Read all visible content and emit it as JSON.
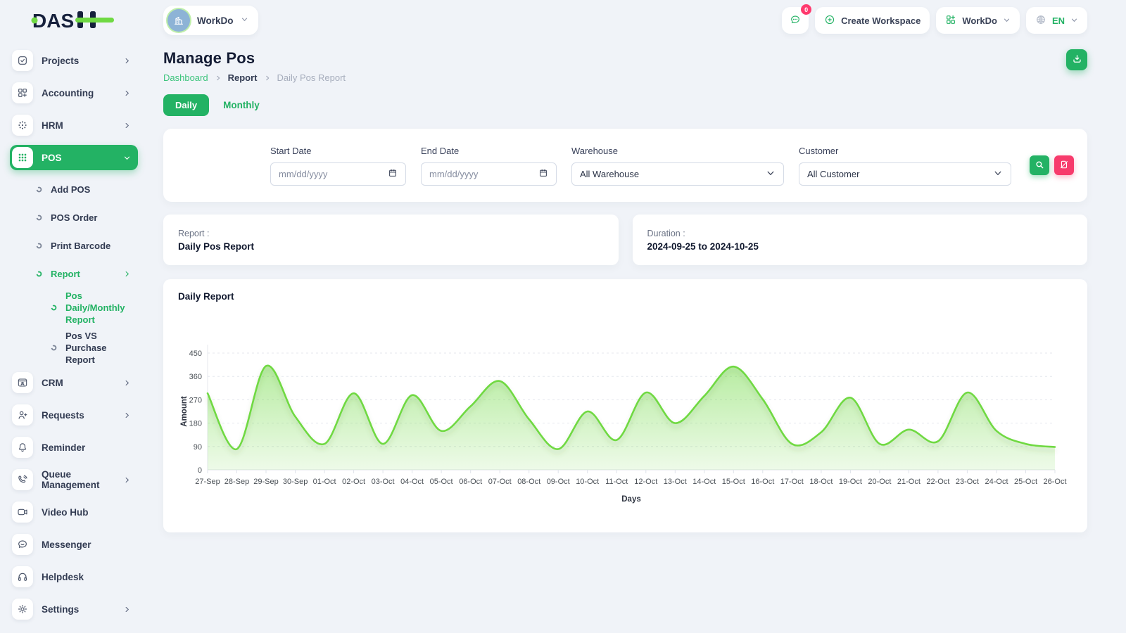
{
  "brand": {
    "logo_text": "DASH"
  },
  "topbar": {
    "workspace_name": "WorkDo",
    "messages_badge": "0",
    "create_workspace_label": "Create Workspace",
    "switcher_label": "WorkDo",
    "language": "EN"
  },
  "sidebar": {
    "items": [
      {
        "label": "Projects",
        "icon": "check-square",
        "chevron": "right",
        "level": 0
      },
      {
        "label": "Accounting",
        "icon": "grid-plus",
        "chevron": "right",
        "level": 0
      },
      {
        "label": "HRM",
        "icon": "target-dots",
        "chevron": "right",
        "level": 0
      },
      {
        "label": "POS",
        "icon": "dots-grid",
        "chevron": "down",
        "level": 0,
        "active": true
      },
      {
        "label": "Add POS",
        "icon": "donut",
        "level": 1
      },
      {
        "label": "POS Order",
        "icon": "donut",
        "level": 1
      },
      {
        "label": "Print Barcode",
        "icon": "donut",
        "level": 1
      },
      {
        "label": "Report",
        "icon": "donut",
        "level": 1,
        "chevron": "right",
        "green": true
      },
      {
        "label": "Pos Daily/Monthly Report",
        "icon": "donut",
        "level": 2,
        "green": true
      },
      {
        "label": "Pos VS Purchase Report",
        "icon": "donut",
        "level": 2
      },
      {
        "label": "CRM",
        "icon": "browser-user",
        "chevron": "right",
        "level": 0
      },
      {
        "label": "Requests",
        "icon": "user-plus",
        "chevron": "right",
        "level": 0
      },
      {
        "label": "Reminder",
        "icon": "bell",
        "level": 0
      },
      {
        "label": "Queue Management",
        "icon": "phone-wave",
        "chevron": "right",
        "level": 0
      },
      {
        "label": "Video Hub",
        "icon": "video",
        "level": 0
      },
      {
        "label": "Messenger",
        "icon": "chat",
        "level": 0
      },
      {
        "label": "Helpdesk",
        "icon": "headphones",
        "level": 0
      },
      {
        "label": "Settings",
        "icon": "gear",
        "chevron": "right",
        "level": 0
      }
    ]
  },
  "page": {
    "title": "Manage Pos",
    "breadcrumb": [
      "Dashboard",
      "Report",
      "Daily Pos Report"
    ]
  },
  "tabs": {
    "daily": "Daily",
    "monthly": "Monthly"
  },
  "filters": {
    "start_date": {
      "label": "Start Date",
      "placeholder": "mm/dd/yyyy"
    },
    "end_date": {
      "label": "End Date",
      "placeholder": "mm/dd/yyyy"
    },
    "warehouse": {
      "label": "Warehouse",
      "value": "All Warehouse"
    },
    "customer": {
      "label": "Customer",
      "value": "All Customer"
    }
  },
  "summary": {
    "report": {
      "label": "Report :",
      "value": "Daily Pos Report"
    },
    "duration": {
      "label": "Duration :",
      "value": "2024-09-25 to 2024-10-25"
    }
  },
  "chart_card": {
    "title": "Daily Report"
  },
  "chart_data": {
    "type": "area",
    "x": [
      "27-Sep",
      "28-Sep",
      "29-Sep",
      "30-Sep",
      "01-Oct",
      "02-Oct",
      "03-Oct",
      "04-Oct",
      "05-Oct",
      "06-Oct",
      "07-Oct",
      "08-Oct",
      "09-Oct",
      "10-Oct",
      "11-Oct",
      "12-Oct",
      "13-Oct",
      "14-Oct",
      "15-Oct",
      "16-Oct",
      "17-Oct",
      "18-Oct",
      "19-Oct",
      "20-Oct",
      "21-Oct",
      "22-Oct",
      "23-Oct",
      "24-Oct",
      "25-Oct",
      "26-Oct"
    ],
    "series": [
      {
        "name": "Amount",
        "values": [
          295,
          80,
          400,
          205,
          100,
          295,
          100,
          288,
          150,
          245,
          342,
          195,
          80,
          225,
          115,
          298,
          180,
          285,
          398,
          272,
          100,
          145,
          278,
          100,
          155,
          110,
          298,
          150,
          100,
          88
        ]
      }
    ],
    "xlabel": "Days",
    "ylabel": "Amount",
    "ylim": [
      0,
      450
    ],
    "yticks": [
      0,
      90,
      180,
      270,
      360,
      450
    ],
    "grid": "horizontal-dashed",
    "legend": "none",
    "line_color": "#6fd943",
    "fill_color": "#6fd943"
  },
  "colors": {
    "primary_green": "#23b264",
    "link_green": "#3cc47c",
    "danger_red": "#f73b6c",
    "badge_red": "#ff3a6e",
    "chart_line": "#6fd943"
  }
}
